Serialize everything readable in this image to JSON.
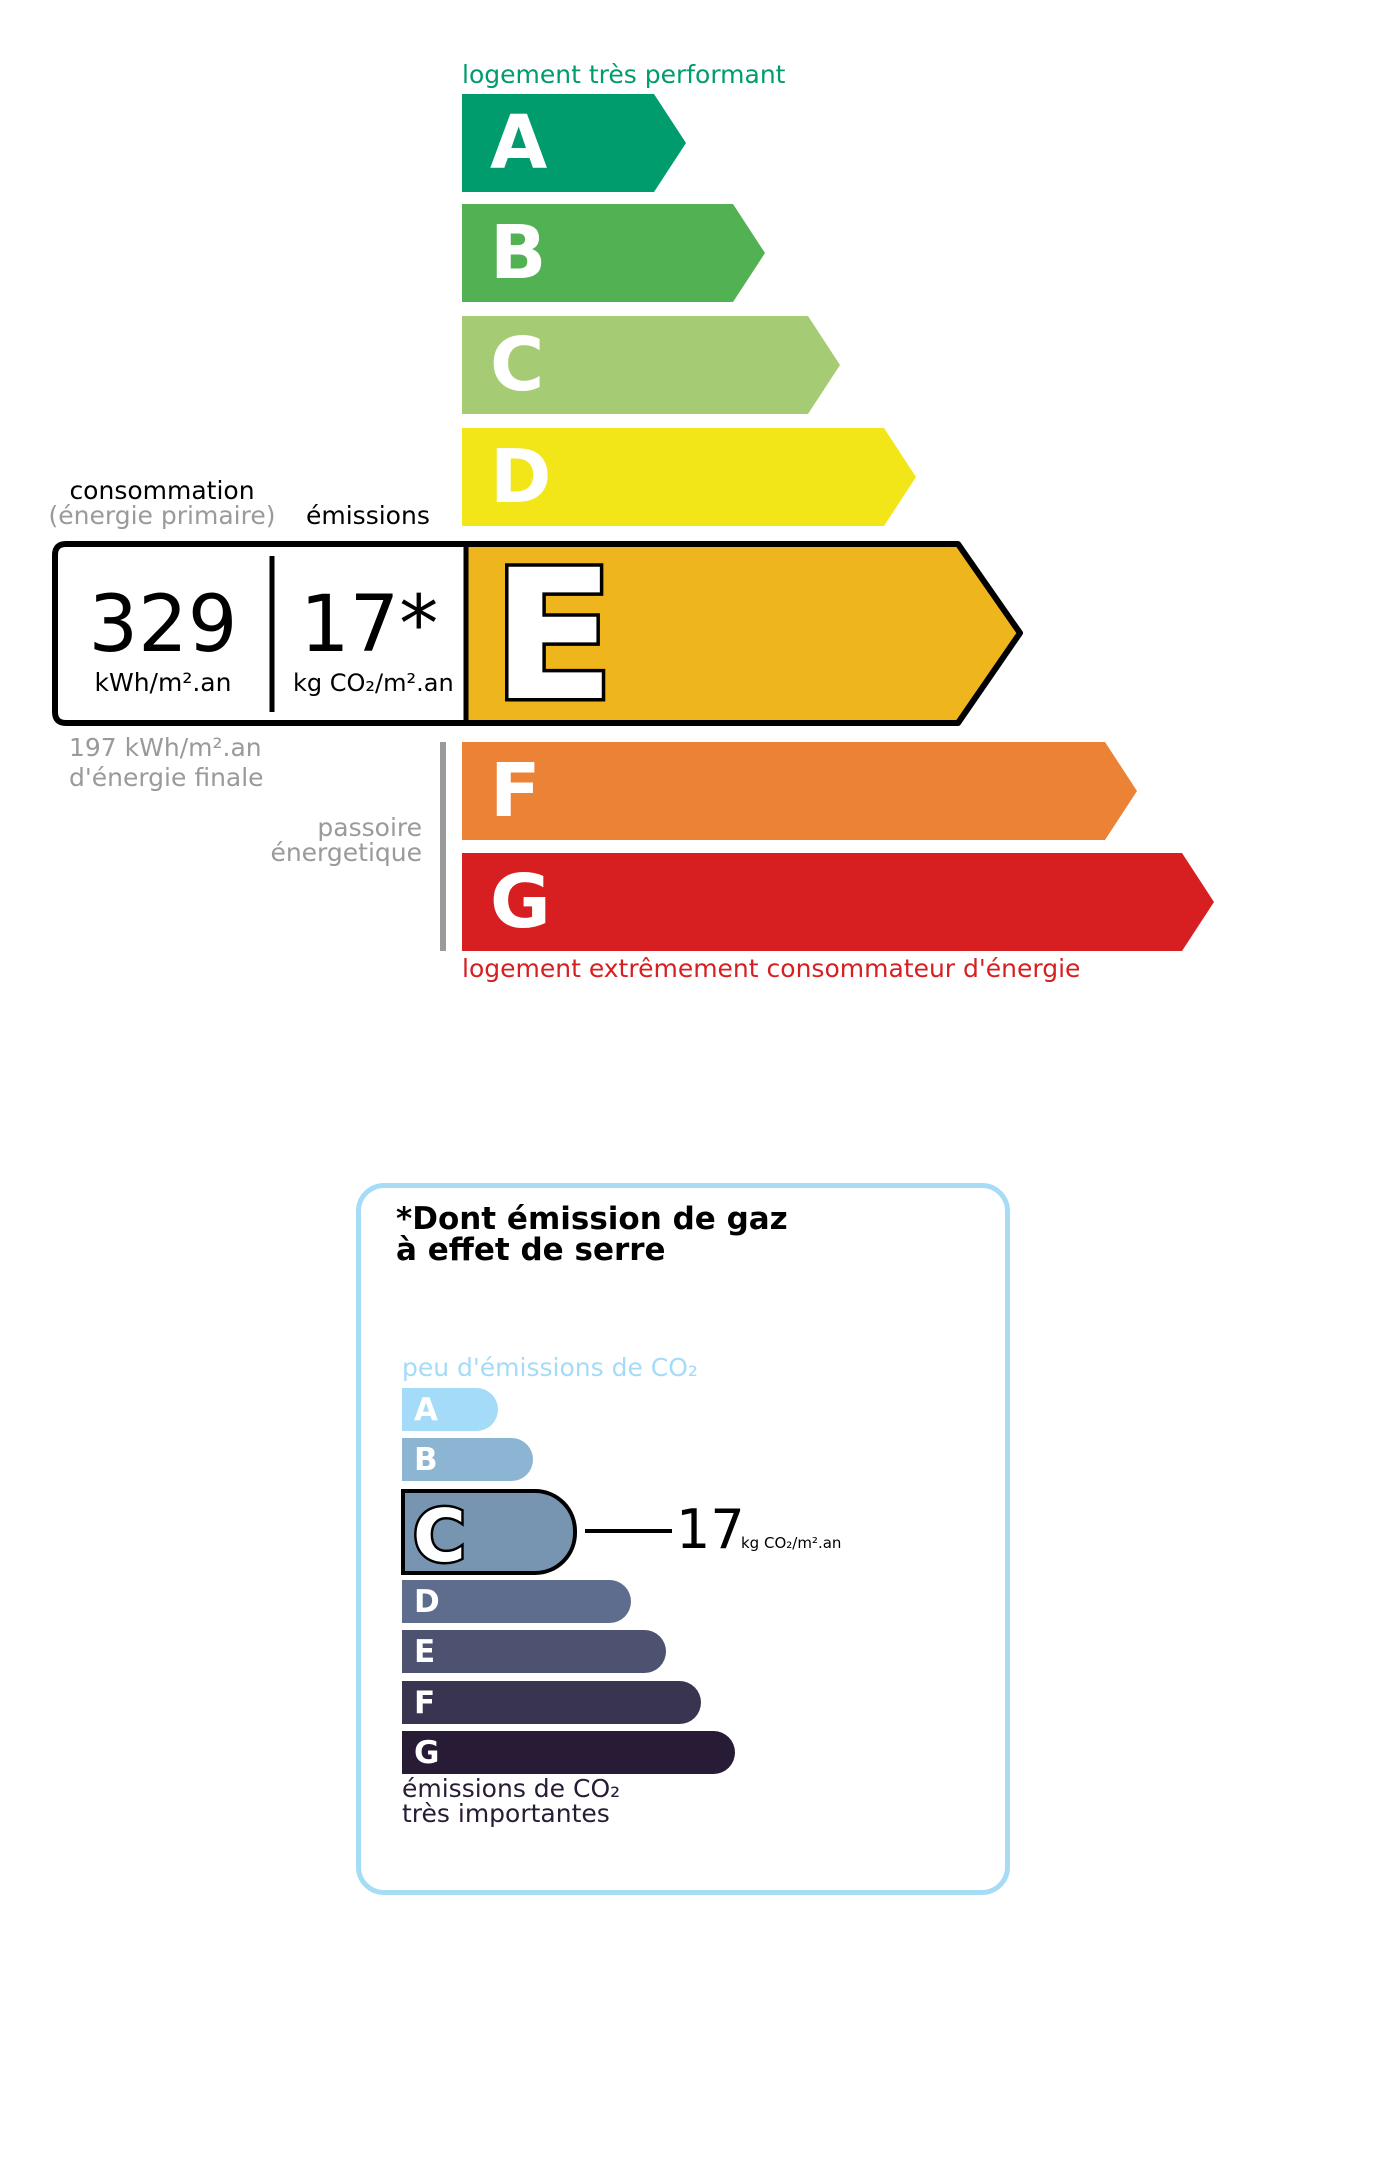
{
  "dpe": {
    "top_label": "logement très performant",
    "bottom_label": "logement extrêmement consommateur d'énergie",
    "classes": [
      {
        "letter": "A",
        "color": "#009c6d"
      },
      {
        "letter": "B",
        "color": "#52b153"
      },
      {
        "letter": "C",
        "color": "#a5cc74"
      },
      {
        "letter": "D",
        "color": "#f2e619"
      },
      {
        "letter": "E",
        "color": "#efb51c"
      },
      {
        "letter": "F",
        "color": "#eb8235"
      },
      {
        "letter": "G",
        "color": "#d71f22"
      }
    ],
    "current_class": "E",
    "consumption_label": "consommation",
    "consumption_sublabel": "(énergie primaire)",
    "emissions_label": "émissions",
    "consumption_value": "329",
    "consumption_unit": "kWh/m².an",
    "emissions_value": "17*",
    "emissions_unit": "kg CO₂/m².an",
    "final_energy_value": "197 kWh/m².an",
    "final_energy_label": "d'énergie finale",
    "passoire_line1": "passoire",
    "passoire_line2": "énergetique"
  },
  "ges": {
    "title_line1": "*Dont émission de gaz",
    "title_line2": "à effet de serre",
    "top_label": "peu d'émissions de CO₂",
    "bottom_line1": "émissions de CO₂",
    "bottom_line2": "très importantes",
    "classes": [
      {
        "letter": "A",
        "color": "#a4dbf8"
      },
      {
        "letter": "B",
        "color": "#8cb4d3"
      },
      {
        "letter": "C",
        "color": "#7794b1"
      },
      {
        "letter": "D",
        "color": "#5e6d8e"
      },
      {
        "letter": "E",
        "color": "#4d5271"
      },
      {
        "letter": "F",
        "color": "#393551"
      },
      {
        "letter": "G",
        "color": "#281b35"
      }
    ],
    "current_class": "C",
    "value": "17",
    "unit": "kg CO₂/m².an",
    "border_color": "#a6dcf5"
  }
}
